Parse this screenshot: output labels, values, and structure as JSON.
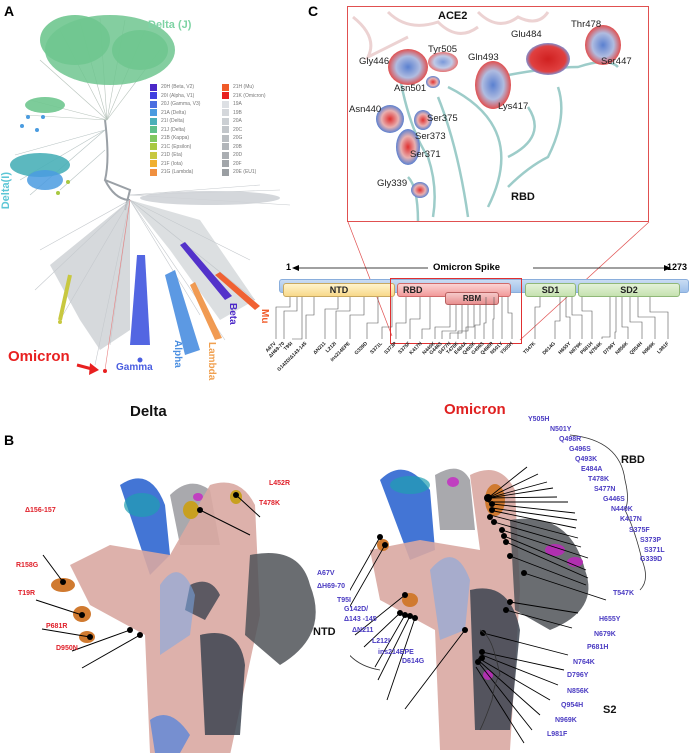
{
  "panels": {
    "a": {
      "letter": "A",
      "clade_labels": {
        "delta_j": "Delta (J)",
        "delta_i": "Delta(I)",
        "omicron": "Omicron",
        "gamma": "Gamma",
        "alpha": "Alpha",
        "lambda": "Lambda",
        "beta": "Beta",
        "mu": "Mu"
      },
      "legend": [
        {
          "label": "20H (Beta, V2)",
          "color": "#4b28c8"
        },
        {
          "label": "21H (Mu)",
          "color": "#f05a28"
        },
        {
          "label": "20I (Alpha, V1)",
          "color": "#4040e0"
        },
        {
          "label": "21K (Omicron)",
          "color": "#e82020"
        },
        {
          "label": "20J (Gamma, V3)",
          "color": "#4a6ee0"
        },
        {
          "label": "19A",
          "color": "#dde0e4"
        },
        {
          "label": "21A (Delta)",
          "color": "#4a9be0"
        },
        {
          "label": "19B",
          "color": "#d4d7db"
        },
        {
          "label": "21I (Delta)",
          "color": "#4ab0b8"
        },
        {
          "label": "20A",
          "color": "#cbcfd3"
        },
        {
          "label": "21J (Delta)",
          "color": "#5fc08a"
        },
        {
          "label": "20C",
          "color": "#c2c6ca"
        },
        {
          "label": "21B (Kappa)",
          "color": "#80c860"
        },
        {
          "label": "20G",
          "color": "#babec2"
        },
        {
          "label": "21C (Epsilon)",
          "color": "#a8c840"
        },
        {
          "label": "20B",
          "color": "#b2b6ba"
        },
        {
          "label": "21D (Eta)",
          "color": "#c8c840"
        },
        {
          "label": "20D",
          "color": "#aaaeb2"
        },
        {
          "label": "21F (Iota)",
          "color": "#f0b030"
        },
        {
          "label": "20F",
          "color": "#a2a6aa"
        },
        {
          "label": "21G (Lambda)",
          "color": "#f09040"
        },
        {
          "label": "20E (EU1)",
          "color": "#9a9ea2"
        }
      ]
    },
    "b": {
      "letter": "B",
      "delta_title": "Delta",
      "omicron_title": "Omicron",
      "delta_mutations": [
        "Δ156-157",
        "R158G",
        "T19R",
        "P681R",
        "D950N",
        "L452R",
        "T478K"
      ],
      "omicron_rbd_label": "RBD",
      "omicron_ntd_label": "NTD",
      "omicron_s2_label": "S2",
      "omicron_rbd_mutations": [
        "Y505H",
        "N501Y",
        "Q498R",
        "G496S",
        "Q493K",
        "E484A",
        "T478K",
        "S477N",
        "G446S",
        "N440K",
        "K417N",
        "S375F",
        "S373P",
        "S371L",
        "G339D"
      ],
      "omicron_ntd_mutations": [
        "A67V",
        "ΔH69-70",
        "T95I",
        "G142D/",
        "Δ143 -145",
        "ΔN211",
        "L212I",
        "ins214EPE",
        "D614G"
      ],
      "omicron_other_mutations": [
        "T547K",
        "H655Y",
        "N679K",
        "P681H"
      ],
      "omicron_s2_mutations": [
        "N764K",
        "D796Y",
        "N856K",
        "Q954H",
        "N969K",
        "L981F"
      ]
    },
    "c": {
      "letter": "C",
      "ace2_label": "ACE2",
      "rbd_label": "RBD",
      "residues": [
        "Thr478",
        "Glu484",
        "Tyr505",
        "Gly446",
        "Gln493",
        "Ser447",
        "Asn501",
        "Asn440",
        "Lys417",
        "Ser375",
        "Ser373",
        "Ser371",
        "Gly339"
      ],
      "spike": {
        "title": "Omicron Spike",
        "start": "1",
        "end": "1273",
        "domains": [
          "NTD",
          "RBD",
          "RBM",
          "SD1",
          "SD2"
        ],
        "mutations": [
          "A67V",
          "ΔH69-70",
          "T95I",
          "G142D/Δ143-145",
          "ΔN211",
          "L212I",
          "ins214EPE",
          "G339D",
          "S371L",
          "S373P",
          "S375F",
          "K417N",
          "N440K",
          "G446S",
          "S477N",
          "T478K",
          "E484A",
          "Q493K",
          "G496S",
          "Q498R",
          "N501Y",
          "Y505H",
          "T547K",
          "D614G",
          "H655Y",
          "N679K",
          "P681H",
          "N764K",
          "D796Y",
          "N856K",
          "Q954H",
          "N969K",
          "L981F"
        ]
      }
    }
  }
}
